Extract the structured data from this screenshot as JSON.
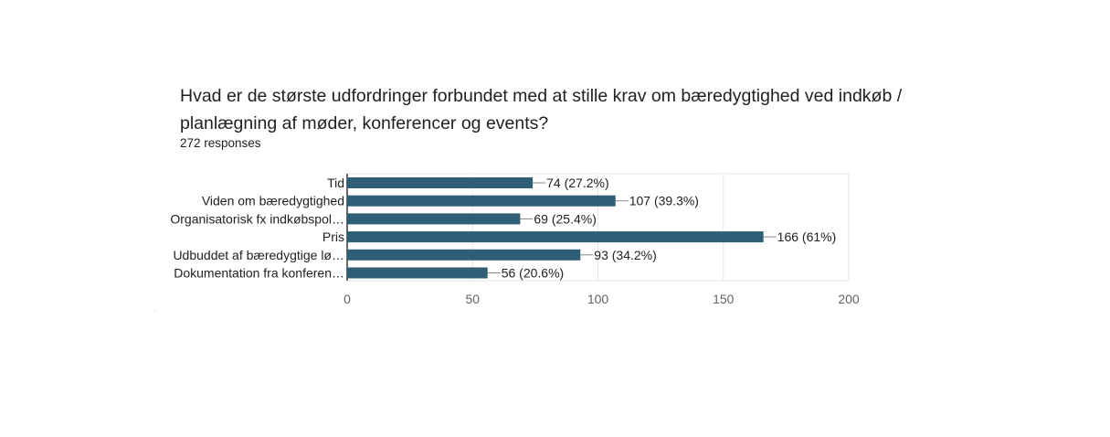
{
  "question": {
    "title": "Hvad er de største udfordringer forbundet med at stille krav om bæredygtighed ved indkøb / planlægning af møder, konferencer og events?",
    "responses": "272 responses"
  },
  "colors": {
    "bar": "#2e5f77",
    "grid": "#e6e6e6",
    "axis": "#333333",
    "text": "#202124",
    "tick": "#5f6368"
  },
  "chart_data": {
    "type": "bar",
    "orientation": "horizontal",
    "categories": [
      "Tid",
      "Viden om bæredygtighed",
      "Organisatorisk fx indkøbspol…",
      "Pris",
      "Udbuddet af bæredygtige lø…",
      "Dokumentation fra konferen…"
    ],
    "values": [
      74,
      107,
      69,
      166,
      93,
      56
    ],
    "value_labels": [
      "74 (27.2%)",
      "107 (39.3%)",
      "69 (25.4%)",
      "166 (61%)",
      "93 (34.2%)",
      "56 (20.6%)"
    ],
    "xlim": [
      0,
      200
    ],
    "xticks": [
      0,
      50,
      100,
      150,
      200
    ],
    "grid": true
  }
}
